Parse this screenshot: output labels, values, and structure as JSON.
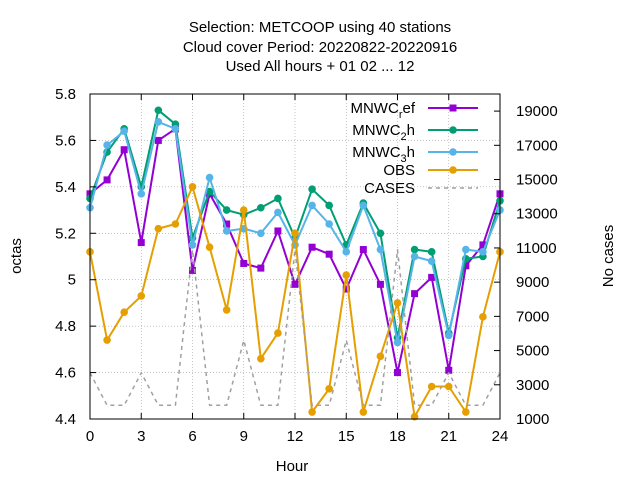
{
  "chart_data": {
    "type": "line",
    "title": [
      "Selection: METCOOP using    40 stations",
      "Cloud cover   Period: 20220822-20220916",
      "Used  All hours  + 01 02 ... 12"
    ],
    "xlabel": "Hour",
    "ylabel": "octas",
    "y2label": "No cases",
    "xlim": [
      0,
      24
    ],
    "ylim": [
      4.4,
      5.8
    ],
    "y2lim": [
      1000,
      20000
    ],
    "xticks": [
      "0",
      "3",
      "6",
      "9",
      "12",
      "15",
      "18",
      "21",
      "24"
    ],
    "yticks": [
      "4.4",
      "4.6",
      "4.8",
      "5",
      "5.2",
      "5.4",
      "5.6",
      "5.8"
    ],
    "y2ticks": [
      "1000",
      "3000",
      "5000",
      "7000",
      "9000",
      "11000",
      "13000",
      "15000",
      "17000",
      "19000"
    ],
    "grid": true,
    "legend_position": "top-right",
    "x": [
      0,
      1,
      2,
      3,
      4,
      5,
      6,
      7,
      8,
      9,
      10,
      11,
      12,
      13,
      14,
      15,
      16,
      17,
      18,
      19,
      20,
      21,
      22,
      23,
      24
    ],
    "series": [
      {
        "name": "MNWC_ref",
        "legend_main": "MNWC",
        "legend_sub": "r",
        "legend_rest": "ef",
        "color": "#9400d3",
        "marker": "square",
        "values": [
          5.37,
          5.43,
          5.56,
          5.16,
          5.6,
          5.65,
          5.04,
          5.37,
          5.24,
          5.07,
          5.05,
          5.21,
          4.98,
          5.14,
          5.11,
          4.96,
          5.13,
          4.98,
          4.6,
          4.94,
          5.01,
          4.61,
          5.06,
          5.15,
          5.37
        ]
      },
      {
        "name": "MNWC_2h",
        "legend_main": "MNWC",
        "legend_sub": "2",
        "legend_rest": "h",
        "color": "#009e73",
        "marker": "circle",
        "values": [
          5.35,
          5.55,
          5.65,
          5.4,
          5.73,
          5.67,
          5.18,
          5.38,
          5.3,
          5.28,
          5.31,
          5.35,
          5.18,
          5.39,
          5.32,
          5.15,
          5.33,
          5.2,
          4.75,
          5.13,
          5.12,
          4.77,
          5.09,
          5.1,
          5.34
        ]
      },
      {
        "name": "MNWC_3h",
        "legend_main": "MNWC",
        "legend_sub": "3",
        "legend_rest": "h",
        "color": "#56b4e9",
        "marker": "circle",
        "values": [
          5.31,
          5.58,
          5.64,
          5.37,
          5.68,
          5.65,
          5.15,
          5.44,
          5.21,
          5.22,
          5.2,
          5.29,
          5.15,
          5.32,
          5.24,
          5.12,
          5.32,
          5.13,
          4.73,
          5.1,
          5.08,
          4.76,
          5.13,
          5.12,
          5.3
        ]
      },
      {
        "name": "OBS",
        "legend_main": "OBS",
        "legend_sub": "",
        "legend_rest": "",
        "color": "#e69f00",
        "marker": "circle",
        "values": [
          5.12,
          4.74,
          4.86,
          4.93,
          5.22,
          5.24,
          5.4,
          5.14,
          4.87,
          5.3,
          4.66,
          4.77,
          5.2,
          4.43,
          4.53,
          5.02,
          4.43,
          4.67,
          4.9,
          4.41,
          4.54,
          4.54,
          4.43,
          4.84,
          5.12
        ]
      },
      {
        "name": "CASES",
        "legend_main": "CASES",
        "legend_sub": "",
        "legend_rest": "",
        "color": "#a0a0a0",
        "marker": "none",
        "dashed": true,
        "axis": "y2",
        "values": [
          3700,
          1800,
          1800,
          3700,
          1800,
          1800,
          10900,
          1800,
          1800,
          5600,
          1800,
          1800,
          10900,
          1800,
          1800,
          5600,
          1800,
          1800,
          10900,
          1800,
          1800,
          3700,
          1800,
          1800,
          3700
        ]
      }
    ]
  }
}
